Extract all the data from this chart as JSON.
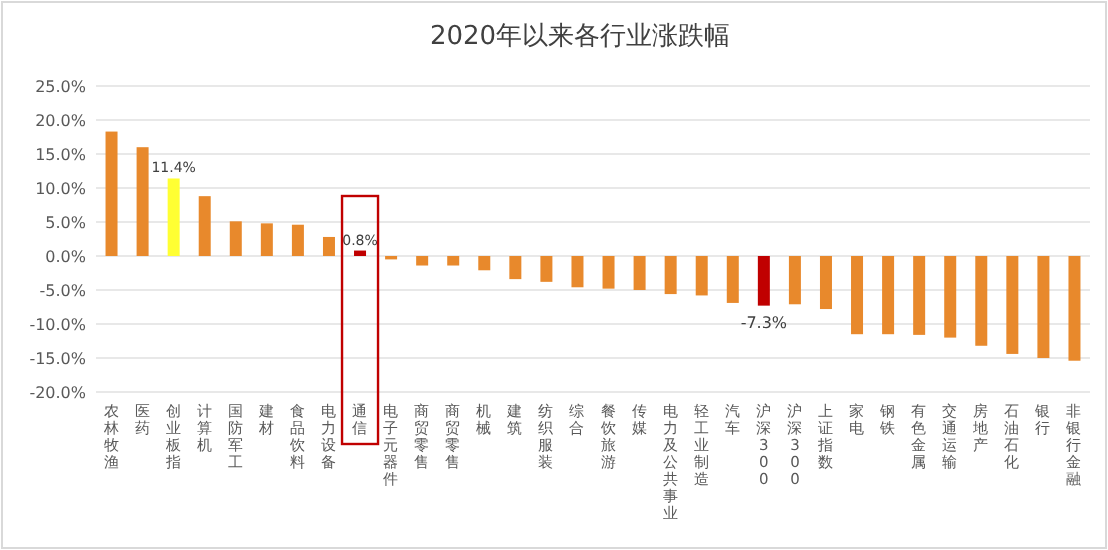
{
  "chart_data": {
    "type": "bar",
    "title": "2020年以来各行业涨跌幅",
    "categories": [
      "农林牧渔",
      "医药",
      "创业板指",
      "计算机",
      "国防军工",
      "建材",
      "食品饮料",
      "电力设备",
      "通信",
      "电子元器件",
      "商贸零售",
      "商贸零售",
      "机械",
      "建筑",
      "纺织服装",
      "综合",
      "餐饮旅游",
      "传媒",
      "电力及公共事业",
      "轻工业制造",
      "汽车",
      "沪深300",
      "沪深300",
      "上证指数",
      "家电",
      "钢铁",
      "有色金属",
      "交通运输",
      "房地产",
      "石油石化",
      "银行",
      "非银行金融"
    ],
    "values": [
      18.3,
      16.0,
      11.4,
      8.8,
      5.1,
      4.8,
      4.6,
      2.8,
      0.8,
      -0.5,
      -1.4,
      -1.4,
      -2.1,
      -3.4,
      -3.8,
      -4.6,
      -4.8,
      -5.0,
      -5.6,
      -5.8,
      -6.9,
      -7.3,
      -7.1,
      -7.8,
      -11.5,
      -11.5,
      -11.6,
      -12.0,
      -13.2,
      -14.4,
      -15.0,
      -15.4
    ],
    "colors": [
      "#e8892c",
      "#e8892c",
      "#ffff33",
      "#e8892c",
      "#e8892c",
      "#e8892c",
      "#e8892c",
      "#e8892c",
      "#c00000",
      "#e8892c",
      "#e8892c",
      "#e8892c",
      "#e8892c",
      "#e8892c",
      "#e8892c",
      "#e8892c",
      "#e8892c",
      "#e8892c",
      "#e8892c",
      "#e8892c",
      "#e8892c",
      "#c00000",
      "#e8892c",
      "#e8892c",
      "#e8892c",
      "#e8892c",
      "#e8892c",
      "#e8892c",
      "#e8892c",
      "#e8892c",
      "#e8892c",
      "#e8892c"
    ],
    "value_labels": [
      null,
      null,
      "11.4%",
      null,
      null,
      null,
      null,
      null,
      "0.8%",
      null,
      null,
      null,
      null,
      null,
      null,
      null,
      null,
      null,
      null,
      null,
      null,
      "-7.3%",
      null,
      null,
      null,
      null,
      null,
      null,
      null,
      null,
      null,
      null
    ],
    "ylim": [
      -20,
      25
    ],
    "yticks": [
      {
        "value": -20,
        "label": "-20.0%"
      },
      {
        "value": -15,
        "label": "-15.0%"
      },
      {
        "value": -10,
        "label": "-10.0%"
      },
      {
        "value": -5,
        "label": "-5.0%"
      },
      {
        "value": 0,
        "label": "0.0%"
      },
      {
        "value": 5,
        "label": "5.0%"
      },
      {
        "value": 10,
        "label": "10.0%"
      },
      {
        "value": 15,
        "label": "15.0%"
      },
      {
        "value": 20,
        "label": "20.0%"
      },
      {
        "value": 25,
        "label": "25.0%"
      }
    ],
    "grid": "y"
  }
}
